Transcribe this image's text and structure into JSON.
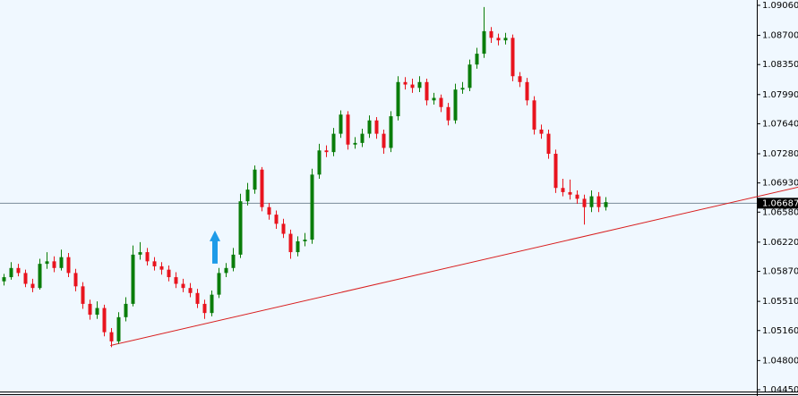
{
  "chart_data": {
    "type": "candlestick",
    "up_color": "#0a7d0a",
    "down_color": "#e8141e",
    "candles": [
      [
        1.0575,
        1.0584,
        1.057,
        1.058
      ],
      [
        1.058,
        1.0598,
        1.0577,
        1.0591
      ],
      [
        1.0591,
        1.0596,
        1.0581,
        1.0585
      ],
      [
        1.0585,
        1.0589,
        1.0568,
        1.0572
      ],
      [
        1.0572,
        1.0578,
        1.0562,
        1.0567
      ],
      [
        1.0567,
        1.0602,
        1.0565,
        1.0596
      ],
      [
        1.0596,
        1.061,
        1.059,
        1.0599
      ],
      [
        1.0599,
        1.0605,
        1.0586,
        1.0591
      ],
      [
        1.0591,
        1.0613,
        1.0588,
        1.0604
      ],
      [
        1.0604,
        1.0609,
        1.058,
        1.0585
      ],
      [
        1.0585,
        1.059,
        1.0563,
        1.0569
      ],
      [
        1.0569,
        1.0574,
        1.0542,
        1.0548
      ],
      [
        1.0548,
        1.0553,
        1.0529,
        1.0535
      ],
      [
        1.0535,
        1.0551,
        1.053,
        1.0543
      ],
      [
        1.0543,
        1.0547,
        1.0509,
        1.0514
      ],
      [
        1.0514,
        1.0519,
        1.0496,
        1.0503
      ],
      [
        1.0503,
        1.0538,
        1.05,
        1.0532
      ],
      [
        1.0532,
        1.0556,
        1.0527,
        1.0548
      ],
      [
        1.0548,
        1.0618,
        1.0545,
        1.0607
      ],
      [
        1.0607,
        1.0622,
        1.0601,
        1.061
      ],
      [
        1.061,
        1.0615,
        1.0594,
        1.0599
      ],
      [
        1.0599,
        1.0604,
        1.0588,
        1.0593
      ],
      [
        1.0593,
        1.0598,
        1.0583,
        1.0589
      ],
      [
        1.0589,
        1.0594,
        1.0575,
        1.058
      ],
      [
        1.058,
        1.0586,
        1.0567,
        1.0572
      ],
      [
        1.0572,
        1.0578,
        1.0562,
        1.0567
      ],
      [
        1.0567,
        1.0573,
        1.0556,
        1.0561
      ],
      [
        1.0561,
        1.0566,
        1.0543,
        1.0548
      ],
      [
        1.0548,
        1.0553,
        1.053,
        1.0537
      ],
      [
        1.0537,
        1.0564,
        1.0533,
        1.0559
      ],
      [
        1.0559,
        1.0591,
        1.0555,
        1.0585
      ],
      [
        1.0585,
        1.0597,
        1.058,
        1.0591
      ],
      [
        1.0591,
        1.0615,
        1.0587,
        1.0607
      ],
      [
        1.0607,
        1.068,
        1.0603,
        1.0671
      ],
      [
        1.0671,
        1.0693,
        1.0666,
        1.0685
      ],
      [
        1.0685,
        1.0714,
        1.068,
        1.0709
      ],
      [
        1.0709,
        1.0712,
        1.0659,
        1.0664
      ],
      [
        1.0664,
        1.0669,
        1.0649,
        1.0655
      ],
      [
        1.0655,
        1.066,
        1.0638,
        1.0644
      ],
      [
        1.0644,
        1.065,
        1.0627,
        1.0632
      ],
      [
        1.0632,
        1.0637,
        1.0602,
        1.061
      ],
      [
        1.061,
        1.0629,
        1.0605,
        1.0623
      ],
      [
        1.0623,
        1.0633,
        1.0617,
        1.0625
      ],
      [
        1.0625,
        1.071,
        1.062,
        1.0703
      ],
      [
        1.0703,
        1.074,
        1.0698,
        1.0732
      ],
      [
        1.0732,
        1.0738,
        1.0724,
        1.073
      ],
      [
        1.073,
        1.0759,
        1.0725,
        1.0752
      ],
      [
        1.0752,
        1.078,
        1.0747,
        1.0775
      ],
      [
        1.0775,
        1.0779,
        1.0733,
        1.0739
      ],
      [
        1.0739,
        1.0748,
        1.0734,
        1.0741
      ],
      [
        1.0741,
        1.0758,
        1.0736,
        1.0752
      ],
      [
        1.0752,
        1.0774,
        1.0747,
        1.0768
      ],
      [
        1.0768,
        1.0772,
        1.0746,
        1.0752
      ],
      [
        1.0752,
        1.0757,
        1.0728,
        1.0735
      ],
      [
        1.0735,
        1.0779,
        1.073,
        1.0773
      ],
      [
        1.0773,
        1.0821,
        1.0768,
        1.0814
      ],
      [
        1.0814,
        1.082,
        1.0805,
        1.0811
      ],
      [
        1.0811,
        1.0818,
        1.0801,
        1.0807
      ],
      [
        1.0807,
        1.0821,
        1.0802,
        1.0814
      ],
      [
        1.0814,
        1.0818,
        1.0786,
        1.0792
      ],
      [
        1.0792,
        1.0801,
        1.0787,
        1.0795
      ],
      [
        1.0795,
        1.0799,
        1.0778,
        1.0784
      ],
      [
        1.0784,
        1.0789,
        1.0762,
        1.0768
      ],
      [
        1.0768,
        1.0812,
        1.0764,
        1.0805
      ],
      [
        1.0805,
        1.0814,
        1.08,
        1.0807
      ],
      [
        1.0807,
        1.0841,
        1.0803,
        1.0835
      ],
      [
        1.0835,
        1.0855,
        1.083,
        1.0848
      ],
      [
        1.0848,
        1.0904,
        1.0843,
        1.0875
      ],
      [
        1.0875,
        1.088,
        1.0861,
        1.0867
      ],
      [
        1.0867,
        1.0872,
        1.0858,
        1.0864
      ],
      [
        1.0864,
        1.0873,
        1.0859,
        1.0867
      ],
      [
        1.0867,
        1.0871,
        1.0815,
        1.0821
      ],
      [
        1.0821,
        1.0826,
        1.0808,
        1.0814
      ],
      [
        1.0814,
        1.0819,
        1.0786,
        1.0792
      ],
      [
        1.0792,
        1.0797,
        1.0751,
        1.0757
      ],
      [
        1.0757,
        1.0763,
        1.0746,
        1.0752
      ],
      [
        1.0752,
        1.0757,
        1.0722,
        1.0728
      ],
      [
        1.0728,
        1.0733,
        1.0681,
        1.0687
      ],
      [
        1.0687,
        1.0698,
        1.0677,
        1.0682
      ],
      [
        1.0682,
        1.0697,
        1.0673,
        1.0679
      ],
      [
        1.0679,
        1.0684,
        1.0668,
        1.0674
      ],
      [
        1.0674,
        1.0679,
        1.0643,
        1.0664
      ],
      [
        1.0664,
        1.0684,
        1.0658,
        1.0677
      ],
      [
        1.0677,
        1.0682,
        1.0658,
        1.0664
      ],
      [
        1.0664,
        1.0676,
        1.066,
        1.067
      ]
    ],
    "ylim": [
      1.04407,
      1.09124
    ],
    "yticks": [
      {
        "value": 1.0906,
        "label": "1.09060"
      },
      {
        "value": 1.087,
        "label": "1.08700"
      },
      {
        "value": 1.0835,
        "label": "1.08350"
      },
      {
        "value": 1.0799,
        "label": "1.07990"
      },
      {
        "value": 1.0764,
        "label": "1.07640"
      },
      {
        "value": 1.0728,
        "label": "1.07280"
      },
      {
        "value": 1.0693,
        "label": "1.06930"
      },
      {
        "value": 1.0658,
        "label": "1.06580"
      },
      {
        "value": 1.0622,
        "label": "1.06220"
      },
      {
        "value": 1.0587,
        "label": "1.05870"
      },
      {
        "value": 1.0551,
        "label": "1.05510"
      },
      {
        "value": 1.0516,
        "label": "1.05160"
      },
      {
        "value": 1.048,
        "label": "1.04800"
      },
      {
        "value": 1.0445,
        "label": "1.04450"
      }
    ],
    "current_price": 1.06687,
    "trendline": {
      "x": [
        14.9,
        110.9
      ],
      "y": [
        1.0498,
        1.0688
      ],
      "color": "#d81e1e"
    },
    "arrow": {
      "index": 29.5,
      "price": 1.0636,
      "color": "#1e9be8"
    }
  }
}
